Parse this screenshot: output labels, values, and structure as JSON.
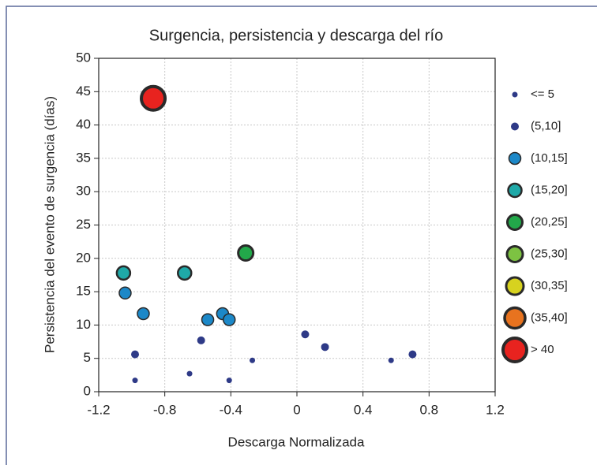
{
  "chart_data": {
    "type": "scatter",
    "title": "Surgencia, persistencia y descarga del río",
    "x_label": "Descarga Normalizada",
    "y_label": "Persistencia del evento de surgencia (días)",
    "xlim": [
      -1.2,
      1.2
    ],
    "xticks": [
      -1.2,
      -0.8,
      -0.4,
      0,
      0.4,
      0.8,
      1.2
    ],
    "ylim": [
      0,
      50
    ],
    "yticks": [
      0,
      5,
      10,
      15,
      20,
      25,
      30,
      35,
      40,
      45,
      50
    ],
    "grid": true,
    "legend": "right",
    "series": [
      {
        "name": "<= 5",
        "color": "#2e3a87",
        "x": [
          -0.98,
          -0.65,
          -0.41,
          -0.27,
          0.57
        ],
        "values": [
          1.7,
          2.7,
          1.7,
          4.7,
          4.7
        ]
      },
      {
        "name": "(5,10]",
        "color": "#2e3a87",
        "x": [
          -0.58,
          -0.98,
          0.05,
          0.17,
          0.7
        ],
        "values": [
          7.7,
          5.6,
          8.6,
          6.7,
          5.6
        ]
      },
      {
        "name": "(10,15]",
        "color": "#1c88c8",
        "x": [
          -1.04,
          -0.93,
          -0.54,
          -0.45,
          -0.41
        ],
        "values": [
          14.8,
          11.7,
          10.8,
          11.7,
          10.8
        ]
      },
      {
        "name": "(15,20]",
        "color": "#1fa9a8",
        "x": [
          -1.05,
          -0.68
        ],
        "values": [
          17.8,
          17.8
        ]
      },
      {
        "name": "(20,25]",
        "color": "#22a84a",
        "x": [
          -0.31
        ],
        "values": [
          20.8
        ]
      },
      {
        "name": "(25,30]",
        "color": "#7dc242",
        "x": [],
        "values": []
      },
      {
        "name": "(30,35]",
        "color": "#d7d21f",
        "x": [],
        "values": []
      },
      {
        "name": "(35,40]",
        "color": "#e8731f",
        "x": [],
        "values": []
      },
      {
        "name": "> 40",
        "color": "#e8231f",
        "x": [
          -0.87
        ],
        "values": [
          44
        ]
      }
    ]
  }
}
